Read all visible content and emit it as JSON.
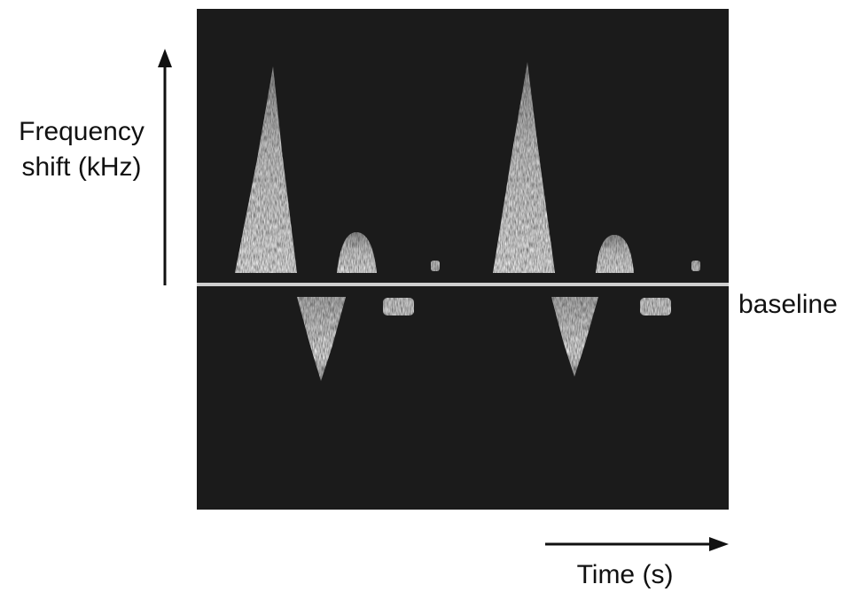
{
  "labels": {
    "y_axis": [
      "Frequency",
      "shift (kHz)"
    ],
    "baseline": "baseline",
    "x_axis": "Time (s)"
  }
}
